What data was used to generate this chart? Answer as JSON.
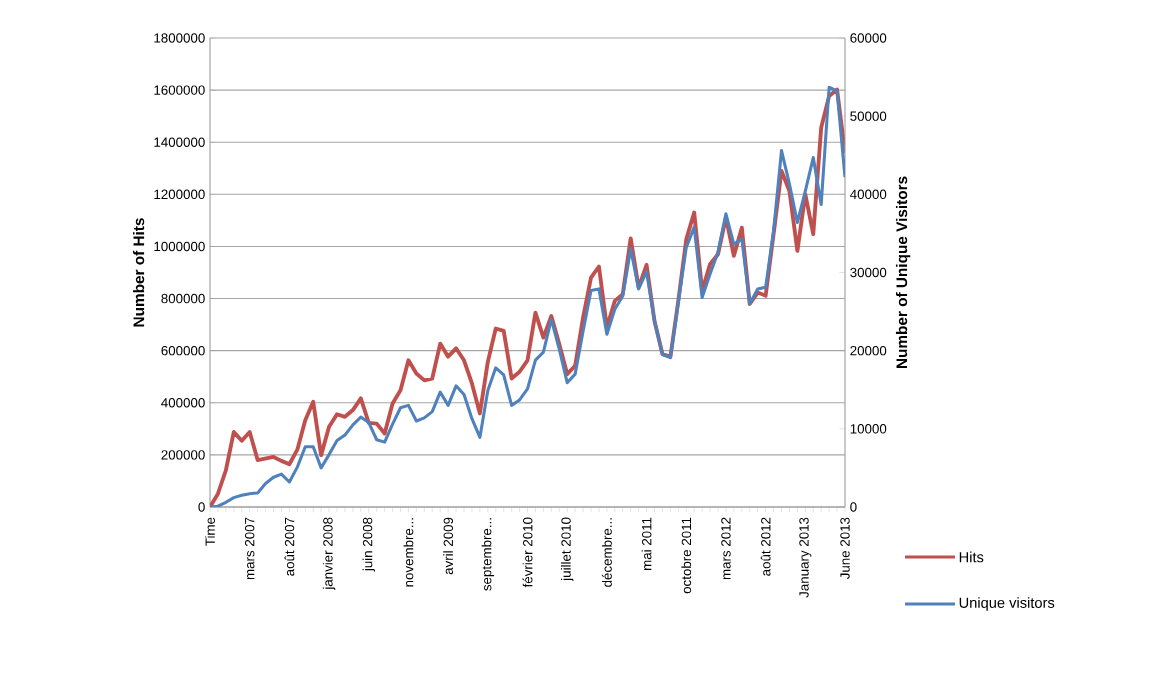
{
  "chart_data": {
    "type": "line",
    "categories": [
      "Time",
      null,
      null,
      null,
      null,
      "mars 2007",
      null,
      null,
      null,
      null,
      "août 2007",
      null,
      null,
      null,
      null,
      "janvier 2008",
      null,
      null,
      null,
      null,
      "juin 2008",
      null,
      null,
      null,
      null,
      "novembre...",
      null,
      null,
      null,
      null,
      "avril 2009",
      null,
      null,
      null,
      null,
      "septembre...",
      null,
      null,
      null,
      null,
      "février 2010",
      null,
      null,
      null,
      null,
      "juillet 2010",
      null,
      null,
      null,
      null,
      "décembre...",
      null,
      null,
      null,
      null,
      "mai 2011",
      null,
      null,
      null,
      null,
      "octobre 2011",
      null,
      null,
      null,
      null,
      "mars 2012",
      null,
      null,
      null,
      null,
      "août 2012",
      null,
      null,
      null,
      null,
      "January 2013",
      null,
      null,
      null,
      null,
      "June 2013"
    ],
    "series": [
      {
        "name": "Hits",
        "color": "#c0504d",
        "values": [
          0,
          51000,
          141000,
          288000,
          254000,
          288000,
          180000,
          186000,
          192000,
          177000,
          164000,
          220000,
          333000,
          404000,
          199000,
          308000,
          356000,
          346000,
          372000,
          417000,
          323000,
          320000,
          282000,
          397000,
          448000,
          563000,
          512000,
          486000,
          493000,
          627000,
          577000,
          609000,
          563000,
          474000,
          359000,
          557000,
          685000,
          676000,
          493000,
          519000,
          563000,
          746000,
          650000,
          733000,
          625000,
          510000,
          542000,
          727000,
          880000,
          923000,
          689000,
          791000,
          817000,
          1031000,
          842000,
          929000,
          714000,
          587000,
          576000,
          791000,
          1027000,
          1130000,
          830000,
          932000,
          970000,
          1111000,
          964000,
          1072000,
          779000,
          823000,
          811000,
          1047000,
          1290000,
          1213000,
          983000,
          1200000,
          1047000,
          1456000,
          1577000,
          1602000,
          1360000
        ]
      },
      {
        "name": "Unique visitors",
        "color": "#4f81bd",
        "axis": "y2",
        "values": [
          0,
          100,
          600,
          1200,
          1500,
          1700,
          1800,
          3000,
          3800,
          4200,
          3200,
          5100,
          7700,
          7700,
          5000,
          6700,
          8500,
          9200,
          10500,
          11500,
          10800,
          8600,
          8300,
          10600,
          12700,
          13000,
          11000,
          11400,
          12200,
          14700,
          13000,
          15500,
          14400,
          11300,
          8900,
          14900,
          17800,
          16900,
          13000,
          13700,
          15100,
          18800,
          19800,
          24000,
          20200,
          15900,
          17000,
          22500,
          27700,
          27900,
          22100,
          25300,
          27000,
          33000,
          27900,
          30100,
          23800,
          19500,
          19100,
          26200,
          33200,
          35800,
          26800,
          29800,
          32600,
          37500,
          33600,
          34300,
          26000,
          27900,
          28100,
          35300,
          45600,
          41300,
          36400,
          40400,
          44700,
          38700,
          53700,
          53200,
          42200
        ]
      }
    ],
    "ylabel": "Number of Hits",
    "y2label": "Number of Unique Visitors",
    "ylim": [
      0,
      1800000
    ],
    "yticks": [
      0,
      200000,
      400000,
      600000,
      800000,
      1000000,
      1200000,
      1400000,
      1600000,
      1800000
    ],
    "y2lim": [
      0,
      60000
    ],
    "y2ticks": [
      0,
      10000,
      20000,
      30000,
      40000,
      50000,
      60000
    ],
    "grid": "y",
    "legend": "right",
    "marker": "none",
    "line_style": "solid"
  }
}
